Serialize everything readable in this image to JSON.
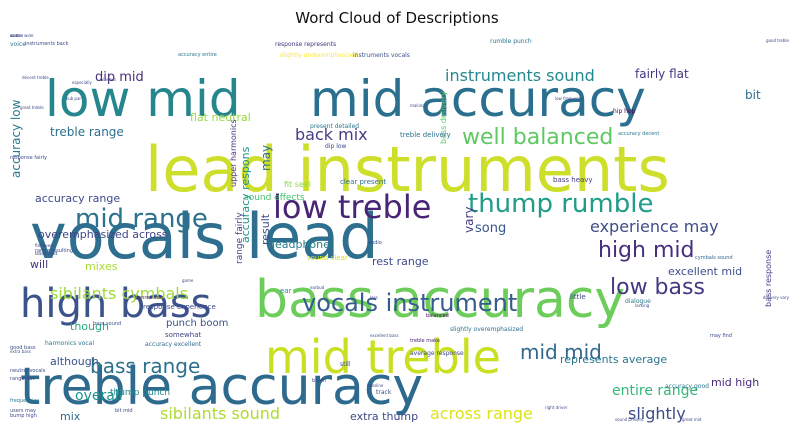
{
  "chart_data": {
    "type": "wordcloud",
    "title": "Word Cloud of Descriptions",
    "words": [
      {
        "text": "lead instruments",
        "size": 62,
        "color": "#cddf2a",
        "rotate": 0
      },
      {
        "text": "vocals lead",
        "size": 62,
        "color": "#2e6e8e",
        "rotate": 0
      },
      {
        "text": "low mid",
        "size": 50,
        "color": "#25878d",
        "rotate": 0
      },
      {
        "text": "mid accuracy",
        "size": 50,
        "color": "#2b6f8e",
        "rotate": 0
      },
      {
        "text": "bass accuracy",
        "size": 52,
        "color": "#6ccd5a",
        "rotate": 0
      },
      {
        "text": "treble accuracy",
        "size": 52,
        "color": "#2d6a8e",
        "rotate": 0
      },
      {
        "text": "mid treble",
        "size": 46,
        "color": "#c8e020",
        "rotate": 0
      },
      {
        "text": "high bass",
        "size": 40,
        "color": "#3b528b",
        "rotate": 0
      },
      {
        "text": "low treble",
        "size": 32,
        "color": "#482475",
        "rotate": 0
      },
      {
        "text": "thump rumble",
        "size": 26,
        "color": "#1f9d89",
        "rotate": 0
      },
      {
        "text": "mid range",
        "size": 26,
        "color": "#2d718e",
        "rotate": 0
      },
      {
        "text": "vocals instrument",
        "size": 24,
        "color": "#365c8d",
        "rotate": 0
      },
      {
        "text": "well balanced",
        "size": 22,
        "color": "#5ec962",
        "rotate": 0
      },
      {
        "text": "high mid",
        "size": 22,
        "color": "#46307e",
        "rotate": 0
      },
      {
        "text": "low bass",
        "size": 22,
        "color": "#453882",
        "rotate": 0
      },
      {
        "text": "bass range",
        "size": 20,
        "color": "#2d708e",
        "rotate": 0
      },
      {
        "text": "mid mid",
        "size": 20,
        "color": "#31688e",
        "rotate": 0
      },
      {
        "text": "instruments sound",
        "size": 16,
        "color": "#23898e",
        "rotate": 0
      },
      {
        "text": "back mix",
        "size": 16,
        "color": "#433e85",
        "rotate": 0
      },
      {
        "text": "experience may",
        "size": 16,
        "color": "#3e4c8a",
        "rotate": 0
      },
      {
        "text": "sibilants cymbals",
        "size": 16,
        "color": "#9fda3a",
        "rotate": 0
      },
      {
        "text": "sibilants sound",
        "size": 16,
        "color": "#addc30",
        "rotate": 0
      },
      {
        "text": "across range",
        "size": 16,
        "color": "#dde318",
        "rotate": 0
      },
      {
        "text": "entire range",
        "size": 14,
        "color": "#35b779",
        "rotate": 0
      },
      {
        "text": "slightly",
        "size": 16,
        "color": "#3e4a89",
        "rotate": 0
      },
      {
        "text": "overall",
        "size": 14,
        "color": "#1f948c",
        "rotate": 0
      },
      {
        "text": "dip mid",
        "size": 13,
        "color": "#472d7b",
        "rotate": 0
      },
      {
        "text": "treble range",
        "size": 12,
        "color": "#2e6f8e",
        "rotate": 0
      },
      {
        "text": "flat neutral",
        "size": 11,
        "color": "#95d840",
        "rotate": 0
      },
      {
        "text": "fairly flat",
        "size": 12,
        "color": "#453781",
        "rotate": 0
      },
      {
        "text": "accuracy range",
        "size": 11,
        "color": "#3e4a89",
        "rotate": 0
      },
      {
        "text": "overemphasized across",
        "size": 11,
        "color": "#404588",
        "rotate": 0
      },
      {
        "text": "headphone",
        "size": 11,
        "color": "#277f8e",
        "rotate": 0
      },
      {
        "text": "song",
        "size": 13,
        "color": "#39558c",
        "rotate": 0
      },
      {
        "text": "rest range",
        "size": 11,
        "color": "#3e4a89",
        "rotate": 0
      },
      {
        "text": "excellent mid",
        "size": 11,
        "color": "#3c508b",
        "rotate": 0
      },
      {
        "text": "represents average",
        "size": 11,
        "color": "#2a778e",
        "rotate": 0
      },
      {
        "text": "mid high",
        "size": 11,
        "color": "#482878",
        "rotate": 0
      },
      {
        "text": "although",
        "size": 11,
        "color": "#3b528b",
        "rotate": 0
      },
      {
        "text": "though",
        "size": 11,
        "color": "#25ab82",
        "rotate": 0
      },
      {
        "text": "mix",
        "size": 11,
        "color": "#31678e",
        "rotate": 0
      },
      {
        "text": "extra thump",
        "size": 11,
        "color": "#3e4989",
        "rotate": 0
      },
      {
        "text": "mixes",
        "size": 11,
        "color": "#a8db34",
        "rotate": 0
      },
      {
        "text": "punch boom",
        "size": 10,
        "color": "#3a548c",
        "rotate": 0
      },
      {
        "text": "thump punch",
        "size": 9,
        "color": "#238a8d",
        "rotate": 0
      },
      {
        "text": "sound effects",
        "size": 9,
        "color": "#46c06f",
        "rotate": 0
      },
      {
        "text": "will",
        "size": 11,
        "color": "#46327e",
        "rotate": 0
      },
      {
        "text": "bit",
        "size": 12,
        "color": "#2d708e",
        "rotate": 0
      },
      {
        "text": "accuracy low",
        "size": 12,
        "color": "#2a788e",
        "rotate": 90
      },
      {
        "text": "accuracy respons",
        "size": 11,
        "color": "#21918c",
        "rotate": 90
      },
      {
        "text": "result",
        "size": 11,
        "color": "#3d4d8a",
        "rotate": 90
      },
      {
        "text": "may",
        "size": 12,
        "color": "#2e6e8e",
        "rotate": 90
      },
      {
        "text": "vary",
        "size": 12,
        "color": "#433d84",
        "rotate": 90
      },
      {
        "text": "range fairly",
        "size": 9,
        "color": "#3f4788",
        "rotate": 90
      },
      {
        "text": "bass delivery",
        "size": 8,
        "color": "#5cc863",
        "rotate": 90
      },
      {
        "text": "bass response",
        "size": 8,
        "color": "#443b84",
        "rotate": 90
      },
      {
        "text": "upper harmonics",
        "size": 8,
        "color": "#46337f",
        "rotate": 90
      },
      {
        "text": "fit seal",
        "size": 8,
        "color": "#8fd744",
        "rotate": 0
      },
      {
        "text": "sound clear",
        "size": 7,
        "color": "#cde11d",
        "rotate": 0
      },
      {
        "text": "clear present",
        "size": 7,
        "color": "#2d708e",
        "rotate": 0
      },
      {
        "text": "rumble punch",
        "size": 6,
        "color": "#2c738e",
        "rotate": 0
      },
      {
        "text": "hip hop",
        "size": 6,
        "color": "#440154",
        "rotate": 0
      },
      {
        "text": "bass heavy",
        "size": 7,
        "color": "#443a83",
        "rotate": 0
      },
      {
        "text": "little",
        "size": 7,
        "color": "#3f4889",
        "rotate": 0
      },
      {
        "text": "cymbals sound",
        "size": 5,
        "color": "#31688e",
        "rotate": 0
      },
      {
        "text": "dialogue",
        "size": 6,
        "color": "#2a788e",
        "rotate": 0
      },
      {
        "text": "response experience",
        "size": 7,
        "color": "#3e4a89",
        "rotate": 0
      },
      {
        "text": "somewhat",
        "size": 7,
        "color": "#414487",
        "rotate": 0
      },
      {
        "text": "harmonics vocal",
        "size": 6,
        "color": "#2a788e",
        "rotate": 0
      },
      {
        "text": "accuracy excellent",
        "size": 6,
        "color": "#2f6c8e",
        "rotate": 0
      },
      {
        "text": "average response",
        "size": 6,
        "color": "#3f4889",
        "rotate": 0
      },
      {
        "text": "accuracy good",
        "size": 6,
        "color": "#2a788e",
        "rotate": 0
      },
      {
        "text": "slightly overemphasized",
        "size": 6,
        "color": "#2c728e",
        "rotate": 0
      },
      {
        "text": "treble make",
        "size": 5,
        "color": "#482475",
        "rotate": 0
      },
      {
        "text": "excellent bass",
        "size": 4,
        "color": "#3b528b",
        "rotate": 0
      },
      {
        "text": "balanced",
        "size": 5,
        "color": "#440154",
        "rotate": 0
      },
      {
        "text": "voice",
        "size": 6,
        "color": "#2d708e",
        "rotate": 0
      },
      {
        "text": "response represents",
        "size": 6,
        "color": "#46327e",
        "rotate": 0
      },
      {
        "text": "slightly underemphasized",
        "size": 6,
        "color": "#fde725",
        "rotate": 0
      },
      {
        "text": "instruments vocals",
        "size": 6,
        "color": "#3b528b",
        "rotate": 0
      },
      {
        "text": "accuracy entire",
        "size": 5,
        "color": "#2a788e",
        "rotate": 0
      },
      {
        "text": "response fairly",
        "size": 5,
        "color": "#3e4a89",
        "rotate": 0
      },
      {
        "text": "accuracy decent",
        "size": 5,
        "color": "#2a788e",
        "rotate": 0
      },
      {
        "text": "treble delivery",
        "size": 7,
        "color": "#2c728e",
        "rotate": 0
      },
      {
        "text": "present detailed",
        "size": 6,
        "color": "#2a788e",
        "rotate": 0
      },
      {
        "text": "range resulting",
        "size": 5,
        "color": "#3e4a89",
        "rotate": 0
      },
      {
        "text": "flat even",
        "size": 4,
        "color": "#443983",
        "rotate": 0
      },
      {
        "text": "bass add",
        "size": 5,
        "color": "#3b528b",
        "rotate": 0
      },
      {
        "text": "genres ade",
        "size": 5,
        "color": "#481f70",
        "rotate": 0
      },
      {
        "text": "bass sound",
        "size": 5,
        "color": "#3b528b",
        "rotate": 0
      },
      {
        "text": "good bass",
        "size": 5,
        "color": "#3b528b",
        "rotate": 0
      },
      {
        "text": "extra bass",
        "size": 4,
        "color": "#3b528b",
        "rotate": 0
      },
      {
        "text": "neutral vocals",
        "size": 5,
        "color": "#3e4a89",
        "rotate": 0
      },
      {
        "text": "range flat",
        "size": 5,
        "color": "#3e4a89",
        "rotate": 0
      },
      {
        "text": "frequencies",
        "size": 5,
        "color": "#2a788e",
        "rotate": 0
      },
      {
        "text": "users may",
        "size": 5,
        "color": "#3e4a89",
        "rotate": 0
      },
      {
        "text": "bump high",
        "size": 5,
        "color": "#3e4a89",
        "rotate": 0
      },
      {
        "text": "instruments back",
        "size": 5,
        "color": "#3e4a89",
        "rotate": 0
      },
      {
        "text": "decent treble",
        "size": 4,
        "color": "#3e4a89",
        "rotate": 0
      },
      {
        "text": "great treble",
        "size": 4,
        "color": "#3e4a89",
        "rotate": 0
      },
      {
        "text": "sub par",
        "size": 4,
        "color": "#3e4a89",
        "rotate": 0
      },
      {
        "text": "wireless",
        "size": 4,
        "color": "#3e4a89",
        "rotate": 0
      },
      {
        "text": "especially",
        "size": 4,
        "color": "#3e4a89",
        "rotate": 0
      },
      {
        "text": "dip low",
        "size": 6,
        "color": "#3e4a89",
        "rotate": 0
      },
      {
        "text": "bit mid",
        "size": 5,
        "color": "#3e4a89",
        "rotate": 0
      },
      {
        "text": "game",
        "size": 4,
        "color": "#3e4a89",
        "rotate": 0
      },
      {
        "text": "ear",
        "size": 7,
        "color": "#21918c",
        "rotate": 0
      },
      {
        "text": "earbud",
        "size": 4,
        "color": "#3e4a89",
        "rotate": 0
      },
      {
        "text": "audio",
        "size": 5,
        "color": "#3e4a89",
        "rotate": 0
      },
      {
        "text": "less",
        "size": 4,
        "color": "#3e4a89",
        "rotate": 0
      },
      {
        "text": "still",
        "size": 6,
        "color": "#3e4a89",
        "rotate": 0
      },
      {
        "text": "boom",
        "size": 5,
        "color": "#3e4a89",
        "rotate": 0
      },
      {
        "text": "bassline",
        "size": 4,
        "color": "#3e4a89",
        "rotate": 0
      },
      {
        "text": "track",
        "size": 6,
        "color": "#3e4a89",
        "rotate": 0
      },
      {
        "text": "may find",
        "size": 5,
        "color": "#3e4a89",
        "rotate": 0
      },
      {
        "text": "great mid",
        "size": 4,
        "color": "#3e4a89",
        "rotate": 0
      },
      {
        "text": "lacking",
        "size": 4,
        "color": "#3e4a89",
        "rotate": 0
      },
      {
        "text": "good treble",
        "size": 4,
        "color": "#3e4a89",
        "rotate": 0
      },
      {
        "text": "delivery vary",
        "size": 4,
        "color": "#3e4a89",
        "rotate": 0
      },
      {
        "text": "sound present",
        "size": 4,
        "color": "#3e4a89",
        "rotate": 0
      },
      {
        "text": "right driver",
        "size": 4,
        "color": "#3e4a89",
        "rotate": 0
      },
      {
        "text": "low frequency",
        "size": 4,
        "color": "#3e4a89",
        "rotate": 0
      },
      {
        "text": "making",
        "size": 4,
        "color": "#3e4a89",
        "rotate": 0
      },
      {
        "text": "said",
        "size": 4,
        "color": "#3e4a89",
        "rotate": 0
      },
      {
        "text": "clutter",
        "size": 4,
        "color": "#3e4a89",
        "rotate": 0
      },
      {
        "text": "across wide",
        "size": 4,
        "color": "#3e4a89",
        "rotate": 0
      }
    ]
  }
}
